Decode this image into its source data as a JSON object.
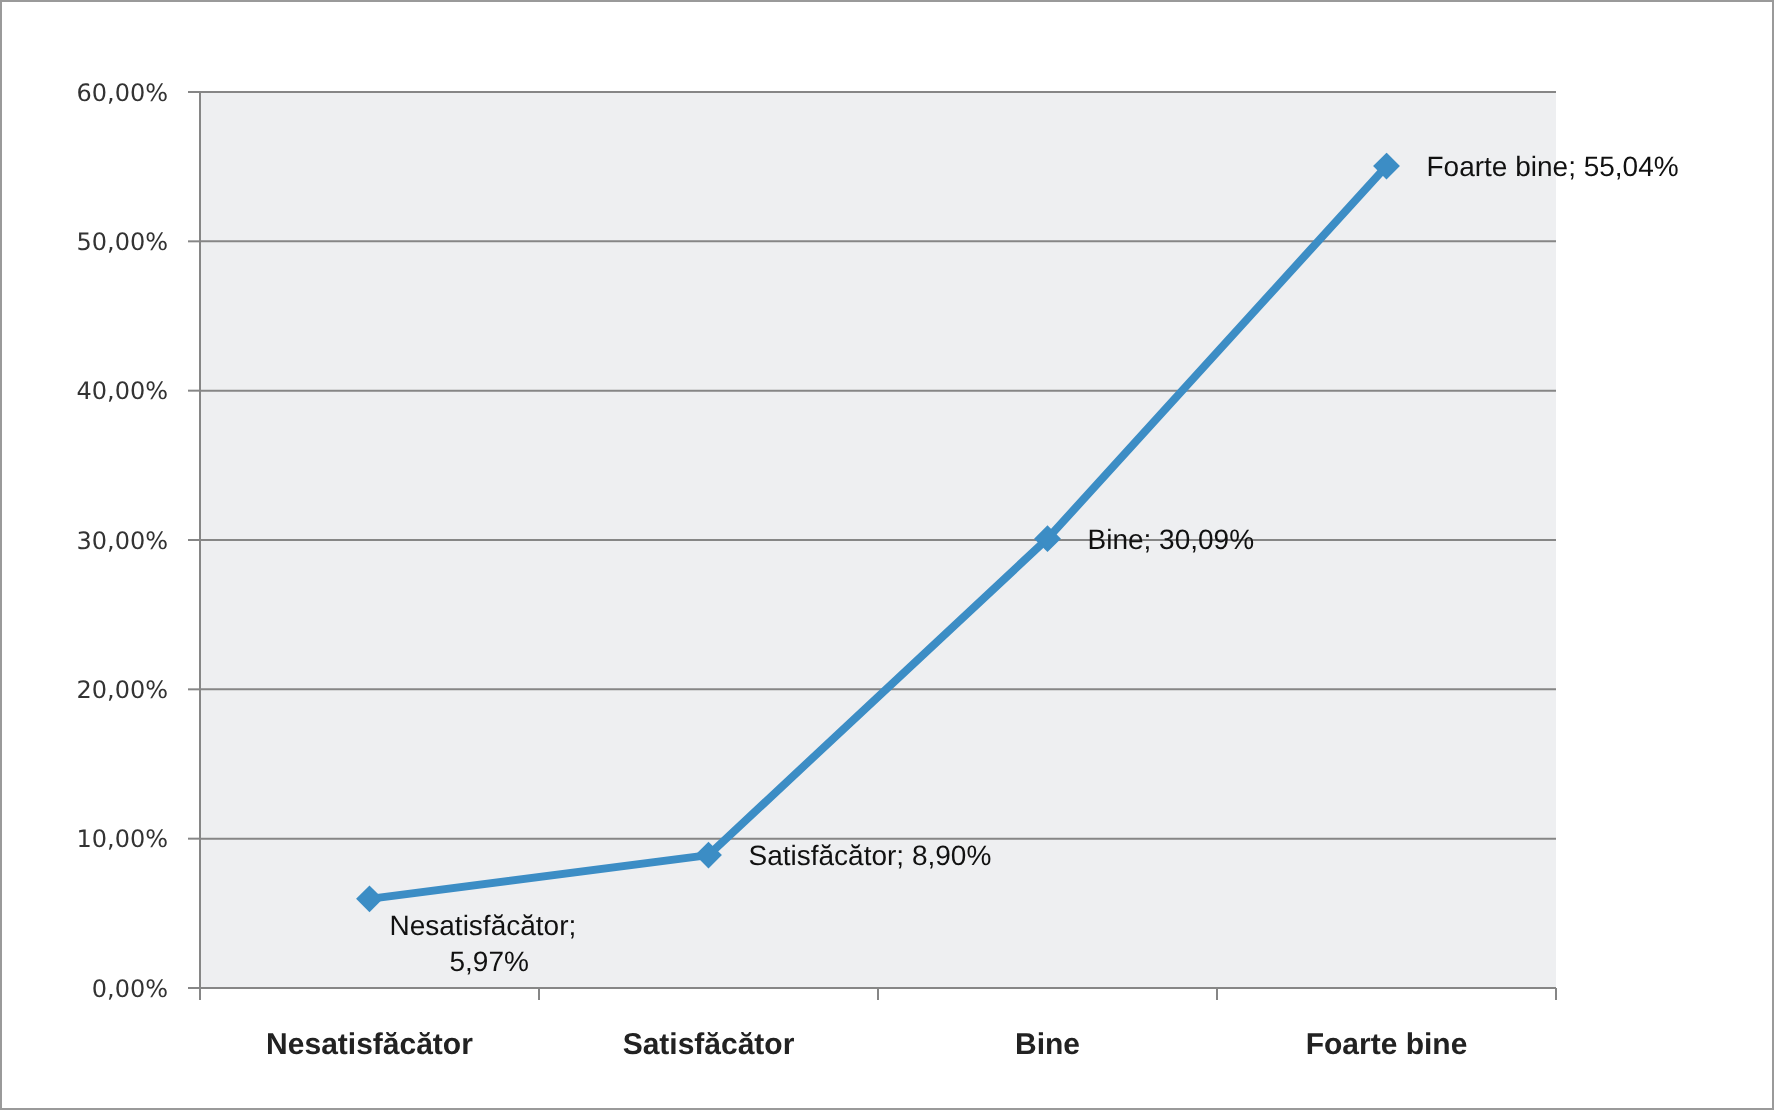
{
  "chart_data": {
    "type": "line",
    "categories": [
      "Nesatisfăcător",
      "Satisfăcător",
      "Bine",
      "Foarte bine"
    ],
    "series": [
      {
        "color": "#3c8dc5",
        "values": [
          5.97,
          8.9,
          30.09,
          55.04
        ],
        "value_labels": [
          "Nesatisfăcător; 5,97%",
          "Satisfăcător; 8,90%",
          "Bine; 30,09%",
          "Foarte bine; 55,04%"
        ]
      }
    ],
    "ylim": [
      0,
      60
    ],
    "yticks": [
      {
        "value": 0,
        "label": "0,00%"
      },
      {
        "value": 10,
        "label": "10,00%"
      },
      {
        "value": 20,
        "label": "20,00%"
      },
      {
        "value": 30,
        "label": "30,00%"
      },
      {
        "value": 40,
        "label": "40,00%"
      },
      {
        "value": 50,
        "label": "50,00%"
      },
      {
        "value": 60,
        "label": "60,00%"
      }
    ],
    "grid": "y",
    "marker": "diamond",
    "line_style": "solid"
  }
}
